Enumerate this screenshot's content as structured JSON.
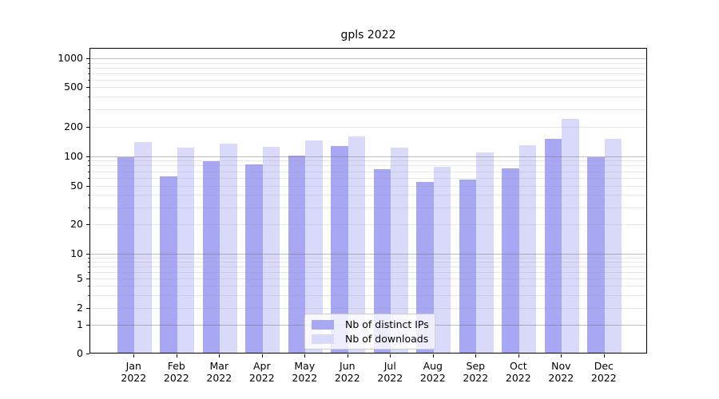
{
  "title": "gpls 2022",
  "chart_data": {
    "type": "bar",
    "title": "gpls 2022",
    "categories": [
      "Jan 2022",
      "Feb 2022",
      "Mar 2022",
      "Apr 2022",
      "May 2022",
      "Jun 2022",
      "Jul 2022",
      "Aug 2022",
      "Sep 2022",
      "Oct 2022",
      "Nov 2022",
      "Dec 2022"
    ],
    "series": [
      {
        "name": "Nb of distinct IPs",
        "color": "#a7a7f3",
        "values": [
          95,
          61,
          87,
          80,
          100,
          124,
          72,
          53,
          57,
          74,
          148,
          96
        ]
      },
      {
        "name": "Nb of downloads",
        "color": "#d9d9fa",
        "values": [
          138,
          119,
          133,
          122,
          141,
          157,
          121,
          77,
          107,
          126,
          235,
          148
        ]
      }
    ],
    "xlabel": "",
    "ylabel": "",
    "yscale": "symlog",
    "ylim": [
      0,
      1400
    ],
    "yticks": [
      1000,
      500,
      200,
      100,
      50,
      20,
      10,
      5,
      2,
      1,
      0
    ],
    "grid": "both",
    "legend_position": "lower center"
  }
}
